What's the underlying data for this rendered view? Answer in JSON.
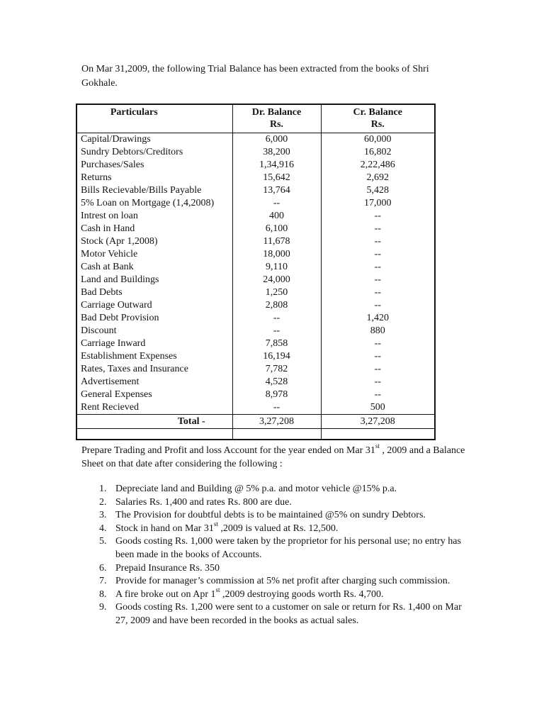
{
  "intro": {
    "text": "On Mar 31,2009, the following Trial Balance has been extracted from the books of Shri Gokhale."
  },
  "table": {
    "headers": {
      "particulars": "Particulars",
      "dr": "Dr. Balance",
      "cr": "Cr. Balance",
      "unit": "Rs."
    },
    "rows": [
      {
        "particulars": "Capital/Drawings",
        "dr": "6,000",
        "cr": "60,000"
      },
      {
        "particulars": "Sundry Debtors/Creditors",
        "dr": "38,200",
        "cr": "16,802"
      },
      {
        "particulars": "Purchases/Sales",
        "dr": "1,34,916",
        "cr": "2,22,486"
      },
      {
        "particulars": "Returns",
        "dr": "15,642",
        "cr": "2,692"
      },
      {
        "particulars": "Bills Recievable/Bills Payable",
        "dr": "13,764",
        "cr": "5,428"
      },
      {
        "particulars": "5% Loan on Mortgage (1,4,2008)",
        "dr": "--",
        "cr": "17,000"
      },
      {
        "particulars": "Intrest on loan",
        "dr": "400",
        "cr": "--"
      },
      {
        "particulars": "Cash in Hand",
        "dr": "6,100",
        "cr": "--"
      },
      {
        "particulars": "Stock (Apr 1,2008)",
        "dr": "11,678",
        "cr": "--"
      },
      {
        "particulars": "Motor Vehicle",
        "dr": "18,000",
        "cr": "--"
      },
      {
        "particulars": "Cash at Bank",
        "dr": "9,110",
        "cr": "--"
      },
      {
        "particulars": "Land and Buildings",
        "dr": "24,000",
        "cr": "--"
      },
      {
        "particulars": "Bad Debts",
        "dr": "1,250",
        "cr": "--"
      },
      {
        "particulars": "Carriage Outward",
        "dr": "2,808",
        "cr": "--"
      },
      {
        "particulars": "Bad Debt Provision",
        "dr": "--",
        "cr": "1,420"
      },
      {
        "particulars": "Discount",
        "dr": "--",
        "cr": "880"
      },
      {
        "particulars": "Carriage Inward",
        "dr": "7,858",
        "cr": "--"
      },
      {
        "particulars": "Establishment Expenses",
        "dr": "16,194",
        "cr": "--"
      },
      {
        "particulars": "Rates, Taxes and Insurance",
        "dr": "7,782",
        "cr": "--"
      },
      {
        "particulars": "Advertisement",
        "dr": "4,528",
        "cr": "--"
      },
      {
        "particulars": "General Expenses",
        "dr": "8,978",
        "cr": "--"
      },
      {
        "particulars": "Rent Recieved",
        "dr": "--",
        "cr": "500"
      }
    ],
    "total": {
      "label": "Total -",
      "dr": "3,27,208",
      "cr": "3,27,208"
    }
  },
  "instruction": {
    "pre": "Prepare Trading and Profit and loss Account for the year ended on Mar 31",
    "sup": "st",
    "post": " , 2009 and a Balance Sheet on that date after considering the following :"
  },
  "notes": [
    {
      "num": "1.",
      "pre": "Depreciate land and Building @ 5% p.a. and motor vehicle @15% p.a."
    },
    {
      "num": "2.",
      "pre": "Salaries Rs. 1,400 and rates Rs. 800 are due."
    },
    {
      "num": "3.",
      "pre": "The Provision for doubtful debts is to be maintained @5% on sundry Debtors."
    },
    {
      "num": "4.",
      "pre": "Stock in hand on Mar 31",
      "sup": "st",
      "post": " ,2009 is valued at Rs. 12,500."
    },
    {
      "num": "5.",
      "pre": "Goods costing Rs. 1,000 were taken by the proprietor for his personal use; no entry has been made in the books of Accounts."
    },
    {
      "num": "6.",
      "pre": "Prepaid Insurance Rs. 350"
    },
    {
      "num": "7.",
      "pre": "Provide for manager’s commission at 5% net profit after charging such commission."
    },
    {
      "num": "8.",
      "pre": "A fire broke out on Apr 1",
      "sup": "st",
      "post": " ,2009 destroying goods worth Rs. 4,700."
    },
    {
      "num": "9.",
      "pre": "Goods costing Rs. 1,200 were sent to a customer on sale or return for Rs. 1,400 on Mar 27, 2009 and have been recorded in the books as actual sales."
    }
  ]
}
